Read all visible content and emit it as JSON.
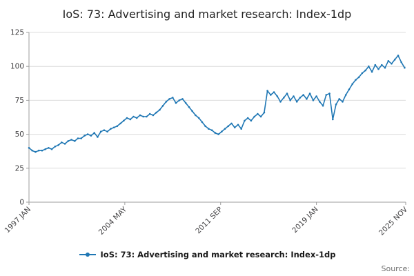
{
  "title": "IoS: 73: Advertising and market research: Index-1dp",
  "legend": {
    "label": "IoS: 73: Advertising and market research: Index-1dp"
  },
  "source_label": "Source:",
  "chart_data": {
    "type": "line",
    "title": "IoS: 73: Advertising and market research: Index-1dp",
    "xlabel": "",
    "ylabel": "",
    "ylim": [
      0,
      125
    ],
    "y_ticks": [
      0,
      25,
      50,
      75,
      100,
      125
    ],
    "grid": true,
    "legend_position": "bottom",
    "x_start": "1997 JAN",
    "x_end": "2025 NOV",
    "x_step_months": 3,
    "x_total_months": 346,
    "x_ticks": [
      {
        "label": "1997 JAN",
        "month": 0
      },
      {
        "label": "2004 MAY",
        "month": 88
      },
      {
        "label": "2011 SEP",
        "month": 176
      },
      {
        "label": "2019 JAN",
        "month": 264
      },
      {
        "label": "2025 NOV",
        "month": 346
      }
    ],
    "line_color": "#1f77b4",
    "grid_color": "#dcdcdc",
    "axis_color": "#9e9e9e",
    "series": [
      {
        "name": "IoS: 73: Advertising and market research: Index-1dp",
        "values": [
          40,
          38,
          37,
          38,
          38,
          39,
          40,
          39,
          41,
          42,
          44,
          43,
          45,
          46,
          45,
          47,
          47,
          49,
          50,
          49,
          51,
          48,
          52,
          53,
          52,
          54,
          55,
          56,
          58,
          60,
          62,
          61,
          63,
          62,
          64,
          63,
          63,
          65,
          64,
          66,
          68,
          71,
          74,
          76,
          77,
          73,
          75,
          76,
          73,
          70,
          67,
          64,
          62,
          59,
          56,
          54,
          53,
          51,
          50,
          52,
          54,
          56,
          58,
          55,
          57,
          54,
          60,
          62,
          60,
          63,
          65,
          63,
          66,
          82,
          79,
          81,
          78,
          74,
          77,
          80,
          75,
          78,
          74,
          77,
          79,
          76,
          80,
          75,
          78,
          74,
          71,
          79,
          80,
          61,
          72,
          76,
          74,
          79,
          83,
          87,
          90,
          92,
          95,
          97,
          100,
          96,
          101,
          98,
          101,
          99,
          104,
          102,
          105,
          108,
          103,
          99
        ]
      }
    ]
  }
}
